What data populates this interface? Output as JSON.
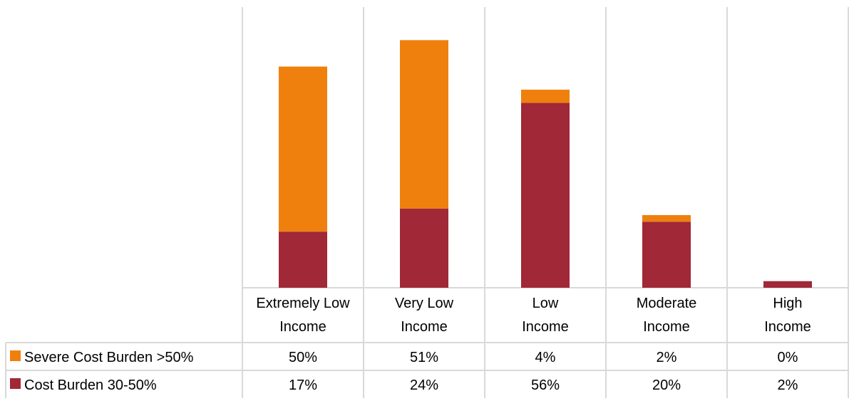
{
  "chart_data": {
    "type": "bar",
    "stacked": true,
    "categories": [
      [
        "Extremely Low",
        "Income"
      ],
      [
        "Very Low",
        "Income"
      ],
      [
        "Low",
        "Income"
      ],
      [
        "Moderate",
        "Income"
      ],
      [
        "High",
        "Income"
      ]
    ],
    "series": [
      {
        "name": "Severe Cost Burden >50%",
        "color": "#F0800D",
        "values": [
          50,
          51,
          4,
          2,
          0
        ],
        "labels": [
          "50%",
          "51%",
          "4%",
          "2%",
          "0%"
        ]
      },
      {
        "name": "Cost Burden 30-50%",
        "color": "#A12837",
        "values": [
          17,
          24,
          56,
          20,
          2
        ],
        "labels": [
          "17%",
          "24%",
          "56%",
          "20%",
          "2%"
        ]
      }
    ],
    "ylim": [
      0,
      85
    ],
    "grid": "vertical category separators",
    "legend": "data table rows at bottom-left"
  }
}
